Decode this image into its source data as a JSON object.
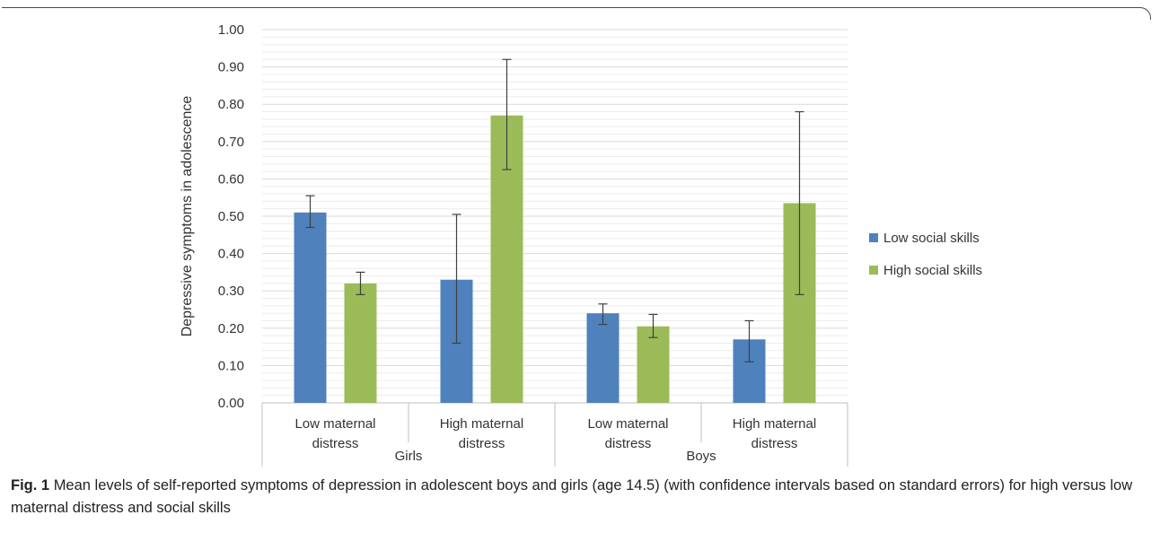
{
  "caption": {
    "label": "Fig. 1",
    "text": "Mean levels of self-reported symptoms of depression in adolescent boys and girls (age 14.5) (with confidence intervals based on standard errors) for high versus low maternal distress and social skills"
  },
  "chart_data": {
    "type": "bar",
    "title": "",
    "ylabel": "Depressive symptoms in adolescence",
    "xlabel": "",
    "ylim": [
      0,
      1.0
    ],
    "yticks": [
      "0.00",
      "0.10",
      "0.20",
      "0.30",
      "0.40",
      "0.50",
      "0.60",
      "0.70",
      "0.80",
      "0.90",
      "1.00"
    ],
    "grid": true,
    "legend_position": "right",
    "groups": [
      {
        "name": "Girls",
        "categories": [
          "Low maternal distress",
          "High maternal distress"
        ]
      },
      {
        "name": "Boys",
        "categories": [
          "Low maternal distress",
          "High maternal distress"
        ]
      }
    ],
    "categories": [
      "Low maternal distress",
      "High maternal distress",
      "Low maternal distress",
      "High maternal distress"
    ],
    "category_lines": [
      [
        "Low maternal",
        "distress"
      ],
      [
        "High maternal",
        "distress"
      ],
      [
        "Low maternal",
        "distress"
      ],
      [
        "High maternal",
        "distress"
      ]
    ],
    "series": [
      {
        "name": "Low social skills",
        "color": "#4f81bd",
        "values": [
          0.51,
          0.33,
          0.24,
          0.17
        ],
        "error_low": [
          0.47,
          0.16,
          0.21,
          0.11
        ],
        "error_high": [
          0.555,
          0.505,
          0.265,
          0.22
        ]
      },
      {
        "name": "High social skills",
        "color": "#9bbb59",
        "values": [
          0.32,
          0.77,
          0.205,
          0.535
        ],
        "error_low": [
          0.29,
          0.625,
          0.175,
          0.29
        ],
        "error_high": [
          0.35,
          0.92,
          0.237,
          0.78
        ]
      }
    ]
  }
}
